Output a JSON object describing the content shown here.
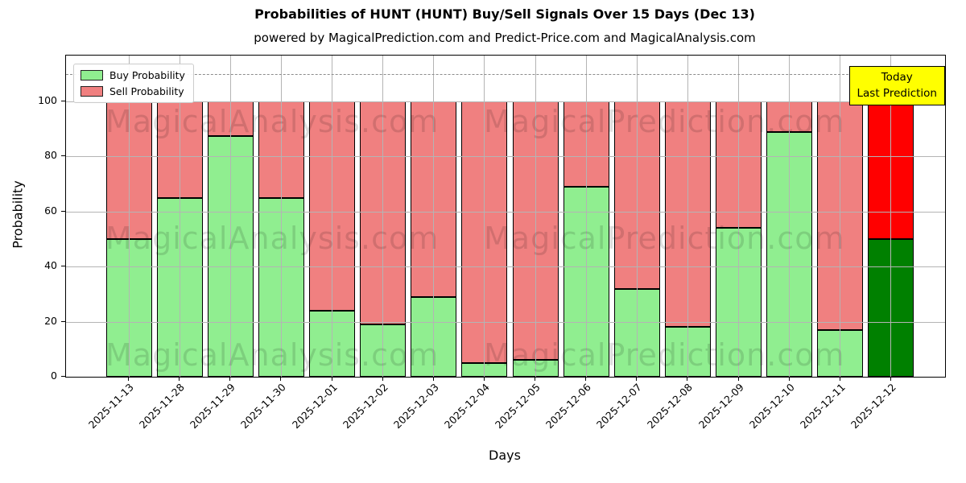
{
  "title": "Probabilities of HUNT (HUNT) Buy/Sell Signals Over 15 Days (Dec 13)",
  "subtitle": "powered by MagicalPrediction.com and Predict-Price.com and MagicalAnalysis.com",
  "legend": {
    "buy_label": "Buy Probability",
    "sell_label": "Sell Probability"
  },
  "annotation": {
    "line1": "Today",
    "line2": "Last Prediction"
  },
  "axes": {
    "xlabel": "Days",
    "ylabel": "Probability",
    "yticks": [
      0,
      20,
      40,
      60,
      80,
      100
    ]
  },
  "watermarks": {
    "left_text": "MagicalAnalysis.com",
    "right_text": "MagicalPrediction.com"
  },
  "colors": {
    "buy": "#90ee90",
    "sell": "#f08080",
    "today_buy": "#008000",
    "today_sell": "#ff0000",
    "annotation_bg": "#ffff00",
    "grid": "#b4b4b4",
    "dashed_line": "#8c8c8c",
    "watermark": "rgba(0,0,0,0.13)"
  },
  "chart_data": {
    "type": "bar",
    "stacked": true,
    "title": "Probabilities of HUNT (HUNT) Buy/Sell Signals Over 15 Days (Dec 13)",
    "xlabel": "Days",
    "ylabel": "Probability",
    "categories": [
      "2025-11-13",
      "2025-11-28",
      "2025-11-29",
      "2025-11-30",
      "2025-12-01",
      "2025-12-02",
      "2025-12-03",
      "2025-12-04",
      "2025-12-05",
      "2025-12-06",
      "2025-12-07",
      "2025-12-08",
      "2025-12-09",
      "2025-12-10",
      "2025-12-11",
      "2025-12-12"
    ],
    "series": [
      {
        "name": "Buy Probability",
        "color": "#90ee90",
        "values": [
          50,
          65,
          87.5,
          65,
          24,
          19,
          29,
          5,
          6,
          69,
          32,
          18,
          54,
          89,
          17,
          50
        ]
      },
      {
        "name": "Sell Probability",
        "color": "#f08080",
        "values": [
          50,
          35,
          12.5,
          35,
          76,
          81,
          71,
          95,
          94,
          31,
          68,
          82,
          46,
          11,
          83,
          50
        ]
      }
    ],
    "today_bar": {
      "category": "2025-12-12",
      "index": 15,
      "buy_color": "#008000",
      "sell_color": "#ff0000"
    },
    "ylim": [
      0,
      116.7
    ],
    "dashed_line_y": 110,
    "grid": true,
    "legend_position": "upper left"
  }
}
